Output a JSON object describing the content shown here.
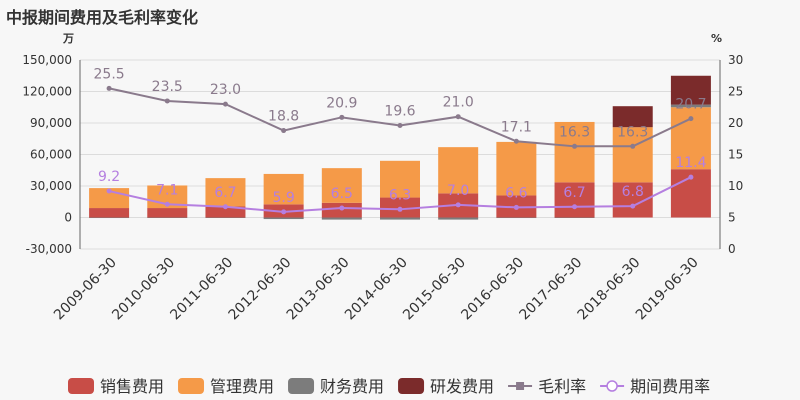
{
  "title": "中报期间费用及毛利率变化",
  "colors": {
    "sales": "#c84d47",
    "admin": "#f59a48",
    "finance": "#7c7c7c",
    "rd": "#7b2b2b",
    "margin": "#8a7a8c",
    "expense_rate": "#b57fe0",
    "grid": "#dcdcdc"
  },
  "chart_data": {
    "type": "bar",
    "title": "中报期间费用及毛利率变化",
    "left_unit": "万",
    "right_unit": "%",
    "ylim_left": [
      -30000,
      150000
    ],
    "yticks_left": [
      "-30,000",
      "0",
      "30,000",
      "60,000",
      "90,000",
      "120,000",
      "150,000"
    ],
    "ylim_right": [
      0,
      30
    ],
    "yticks_right": [
      "0",
      "5",
      "10",
      "15",
      "20",
      "25",
      "30"
    ],
    "categories": [
      "2009-06-30",
      "2010-06-30",
      "2011-06-30",
      "2012-06-30",
      "2013-06-30",
      "2014-06-30",
      "2015-06-30",
      "2016-06-30",
      "2017-06-30",
      "2018-06-30",
      "2019-06-30"
    ],
    "series": [
      {
        "name": "销售费用",
        "type": "bar",
        "axis": "left",
        "values": [
          9000,
          9000,
          10500,
          12500,
          14000,
          19000,
          23000,
          21000,
          33500,
          33500,
          46000
        ]
      },
      {
        "name": "管理费用",
        "type": "bar",
        "axis": "left",
        "values": [
          19000,
          21500,
          27000,
          29000,
          33000,
          35000,
          44000,
          51000,
          57500,
          52500,
          59000
        ]
      },
      {
        "name": "财务费用",
        "type": "bar",
        "axis": "left",
        "values": [
          -500,
          -300,
          -200,
          -1500,
          -2000,
          -2000,
          -2000,
          -500,
          -300,
          0,
          2500
        ]
      },
      {
        "name": "研发费用",
        "type": "bar",
        "axis": "left",
        "values": [
          0,
          0,
          0,
          0,
          0,
          0,
          0,
          0,
          0,
          20000,
          27500
        ]
      },
      {
        "name": "毛利率",
        "type": "line",
        "axis": "right",
        "values": [
          25.5,
          23.5,
          23.0,
          18.8,
          20.9,
          19.6,
          21.0,
          17.1,
          16.3,
          16.3,
          20.7
        ],
        "labels": [
          "25.5",
          "23.5",
          "23.0",
          "18.8",
          "20.9",
          "19.6",
          "21.0",
          "17.1",
          "16.3",
          "16.3",
          "20.7"
        ]
      },
      {
        "name": "期间费用率",
        "type": "line",
        "axis": "right",
        "values": [
          9.2,
          7.1,
          6.7,
          5.9,
          6.5,
          6.3,
          7.0,
          6.6,
          6.7,
          6.8,
          11.4
        ],
        "labels": [
          "9.2",
          "7.1",
          "6.7",
          "5.9",
          "6.5",
          "6.3",
          "7.0",
          "6.6",
          "6.7",
          "6.8",
          "11.4"
        ]
      }
    ],
    "grid": true,
    "legend": "bottom"
  }
}
